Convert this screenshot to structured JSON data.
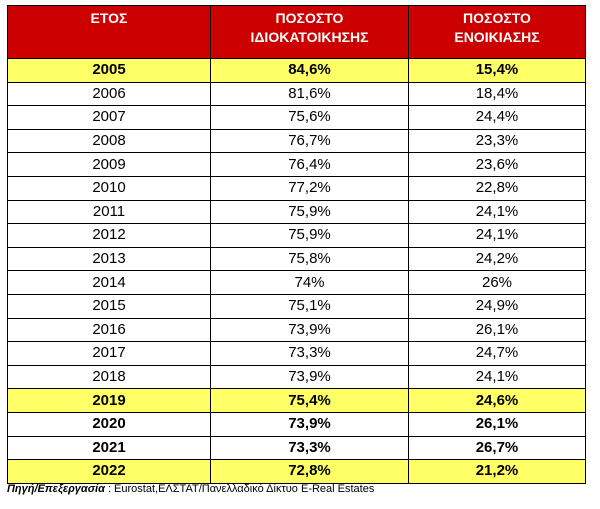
{
  "table": {
    "header": [
      [
        "ΕΤΟΣ"
      ],
      [
        "ΠΟΣΟΣΤΟ",
        "ΙΔΙΟΚΑΤΟΙΚΗΣΗΣ"
      ],
      [
        "ΠΟΣΟΣΤΟ",
        "ΕΝΟΙΚΙΑΣΗΣ"
      ]
    ],
    "header_color": "#cc0000",
    "highlight_color": "#ffff66",
    "highlighted_rows": [
      0,
      14,
      17
    ],
    "bold_rows": [
      0,
      14,
      15,
      16,
      17
    ],
    "rows": [
      [
        "2005",
        "84,6%",
        "15,4%"
      ],
      [
        "2006",
        "81,6%",
        "18,4%"
      ],
      [
        "2007",
        "75,6%",
        "24,4%"
      ],
      [
        "2008",
        "76,7%",
        "23,3%"
      ],
      [
        "2009",
        "76,4%",
        "23,6%"
      ],
      [
        "2010",
        "77,2%",
        "22,8%"
      ],
      [
        "2011",
        "75,9%",
        "24,1%"
      ],
      [
        "2012",
        "75,9%",
        "24,1%"
      ],
      [
        "2013",
        "75,8%",
        "24,2%"
      ],
      [
        "2014",
        "74%",
        "26%"
      ],
      [
        "2015",
        "75,1%",
        "24,9%"
      ],
      [
        "2016",
        "73,9%",
        "26,1%"
      ],
      [
        "2017",
        "73,3%",
        "24,7%"
      ],
      [
        "2018",
        "73,9%",
        "24,1%"
      ],
      [
        "2019",
        "75,4%",
        "24,6%"
      ],
      [
        "2020",
        "73,9%",
        "26,1%"
      ],
      [
        "2021",
        "73,3%",
        "26,7%"
      ],
      [
        "2022",
        "72,8%",
        "21,2%"
      ]
    ]
  },
  "source": {
    "label": "Πηγή/Επεξεργασία",
    "text": ": Eurostat,ΕΛΣΤΑΤ/Πανελλαδικό Δίκτυο E-Real Estates"
  }
}
